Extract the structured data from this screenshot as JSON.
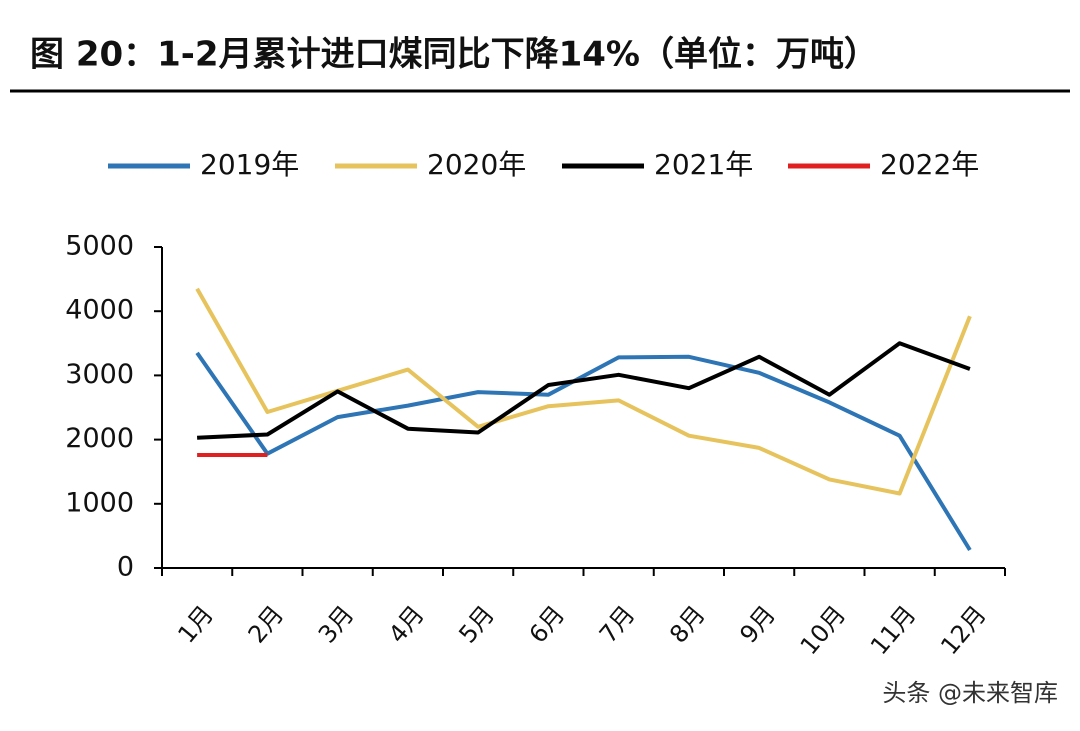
{
  "chart_data": {
    "type": "line",
    "title": "图 20：1-2月累计进口煤同比下降14%（单位：万吨）",
    "categories": [
      "1月",
      "2月",
      "3月",
      "4月",
      "5月",
      "6月",
      "7月",
      "8月",
      "9月",
      "10月",
      "11月",
      "12月"
    ],
    "series": [
      {
        "name": "2019年",
        "color": "#2e75b6",
        "values": [
          3350,
          1780,
          2350,
          2530,
          2740,
          2700,
          3280,
          3290,
          3040,
          2580,
          2060,
          280
        ]
      },
      {
        "name": "2020年",
        "color": "#e6c35c",
        "values": [
          4350,
          2430,
          2760,
          3090,
          2200,
          2520,
          2610,
          2060,
          1870,
          1380,
          1160,
          3920
        ]
      },
      {
        "name": "2021年",
        "color": "#000000",
        "values": [
          2030,
          2080,
          2750,
          2170,
          2110,
          2850,
          3010,
          2800,
          3290,
          2700,
          3500,
          3100
        ]
      },
      {
        "name": "2022年",
        "color": "#e02020",
        "values": [
          1760,
          1760,
          null,
          null,
          null,
          null,
          null,
          null,
          null,
          null,
          null,
          null
        ]
      }
    ],
    "ylim": [
      0,
      5000
    ],
    "yticks": [
      0,
      1000,
      2000,
      3000,
      4000,
      5000
    ],
    "legend": "top",
    "watermark": "头条 @未来智库"
  }
}
